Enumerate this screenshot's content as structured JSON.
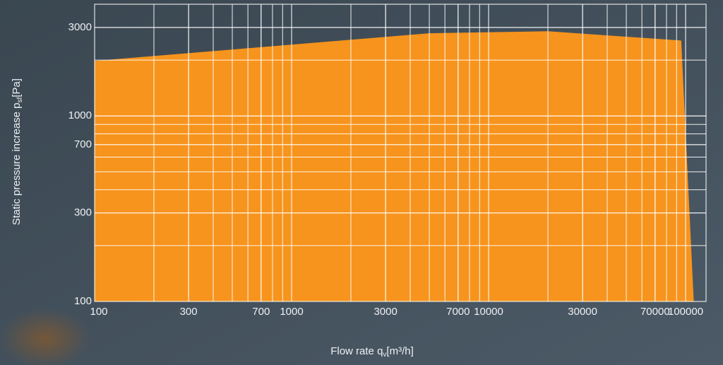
{
  "chart_data": {
    "type": "area",
    "log_x": true,
    "log_y": true,
    "grid": true,
    "x": [
      100,
      5000,
      20000,
      95000,
      110000
    ],
    "series": [
      {
        "color": "#f7941d",
        "values": [
          1980,
          2790,
          2860,
          2550,
          100
        ]
      }
    ],
    "xlim": [
      100,
      127000
    ],
    "ylim": [
      100,
      4000
    ],
    "xticks": [
      100,
      300,
      700,
      1000,
      3000,
      7000,
      10000,
      30000,
      70000,
      100000
    ],
    "yticks": [
      100,
      300,
      700,
      1000,
      3000
    ],
    "xlabel": {
      "main": "Flow rate q",
      "sub": "v",
      "unit": "[m³/h]"
    },
    "ylabel": {
      "main": "Static pressure increase  p",
      "sub": "sf",
      "unit": "[Pa]"
    }
  }
}
